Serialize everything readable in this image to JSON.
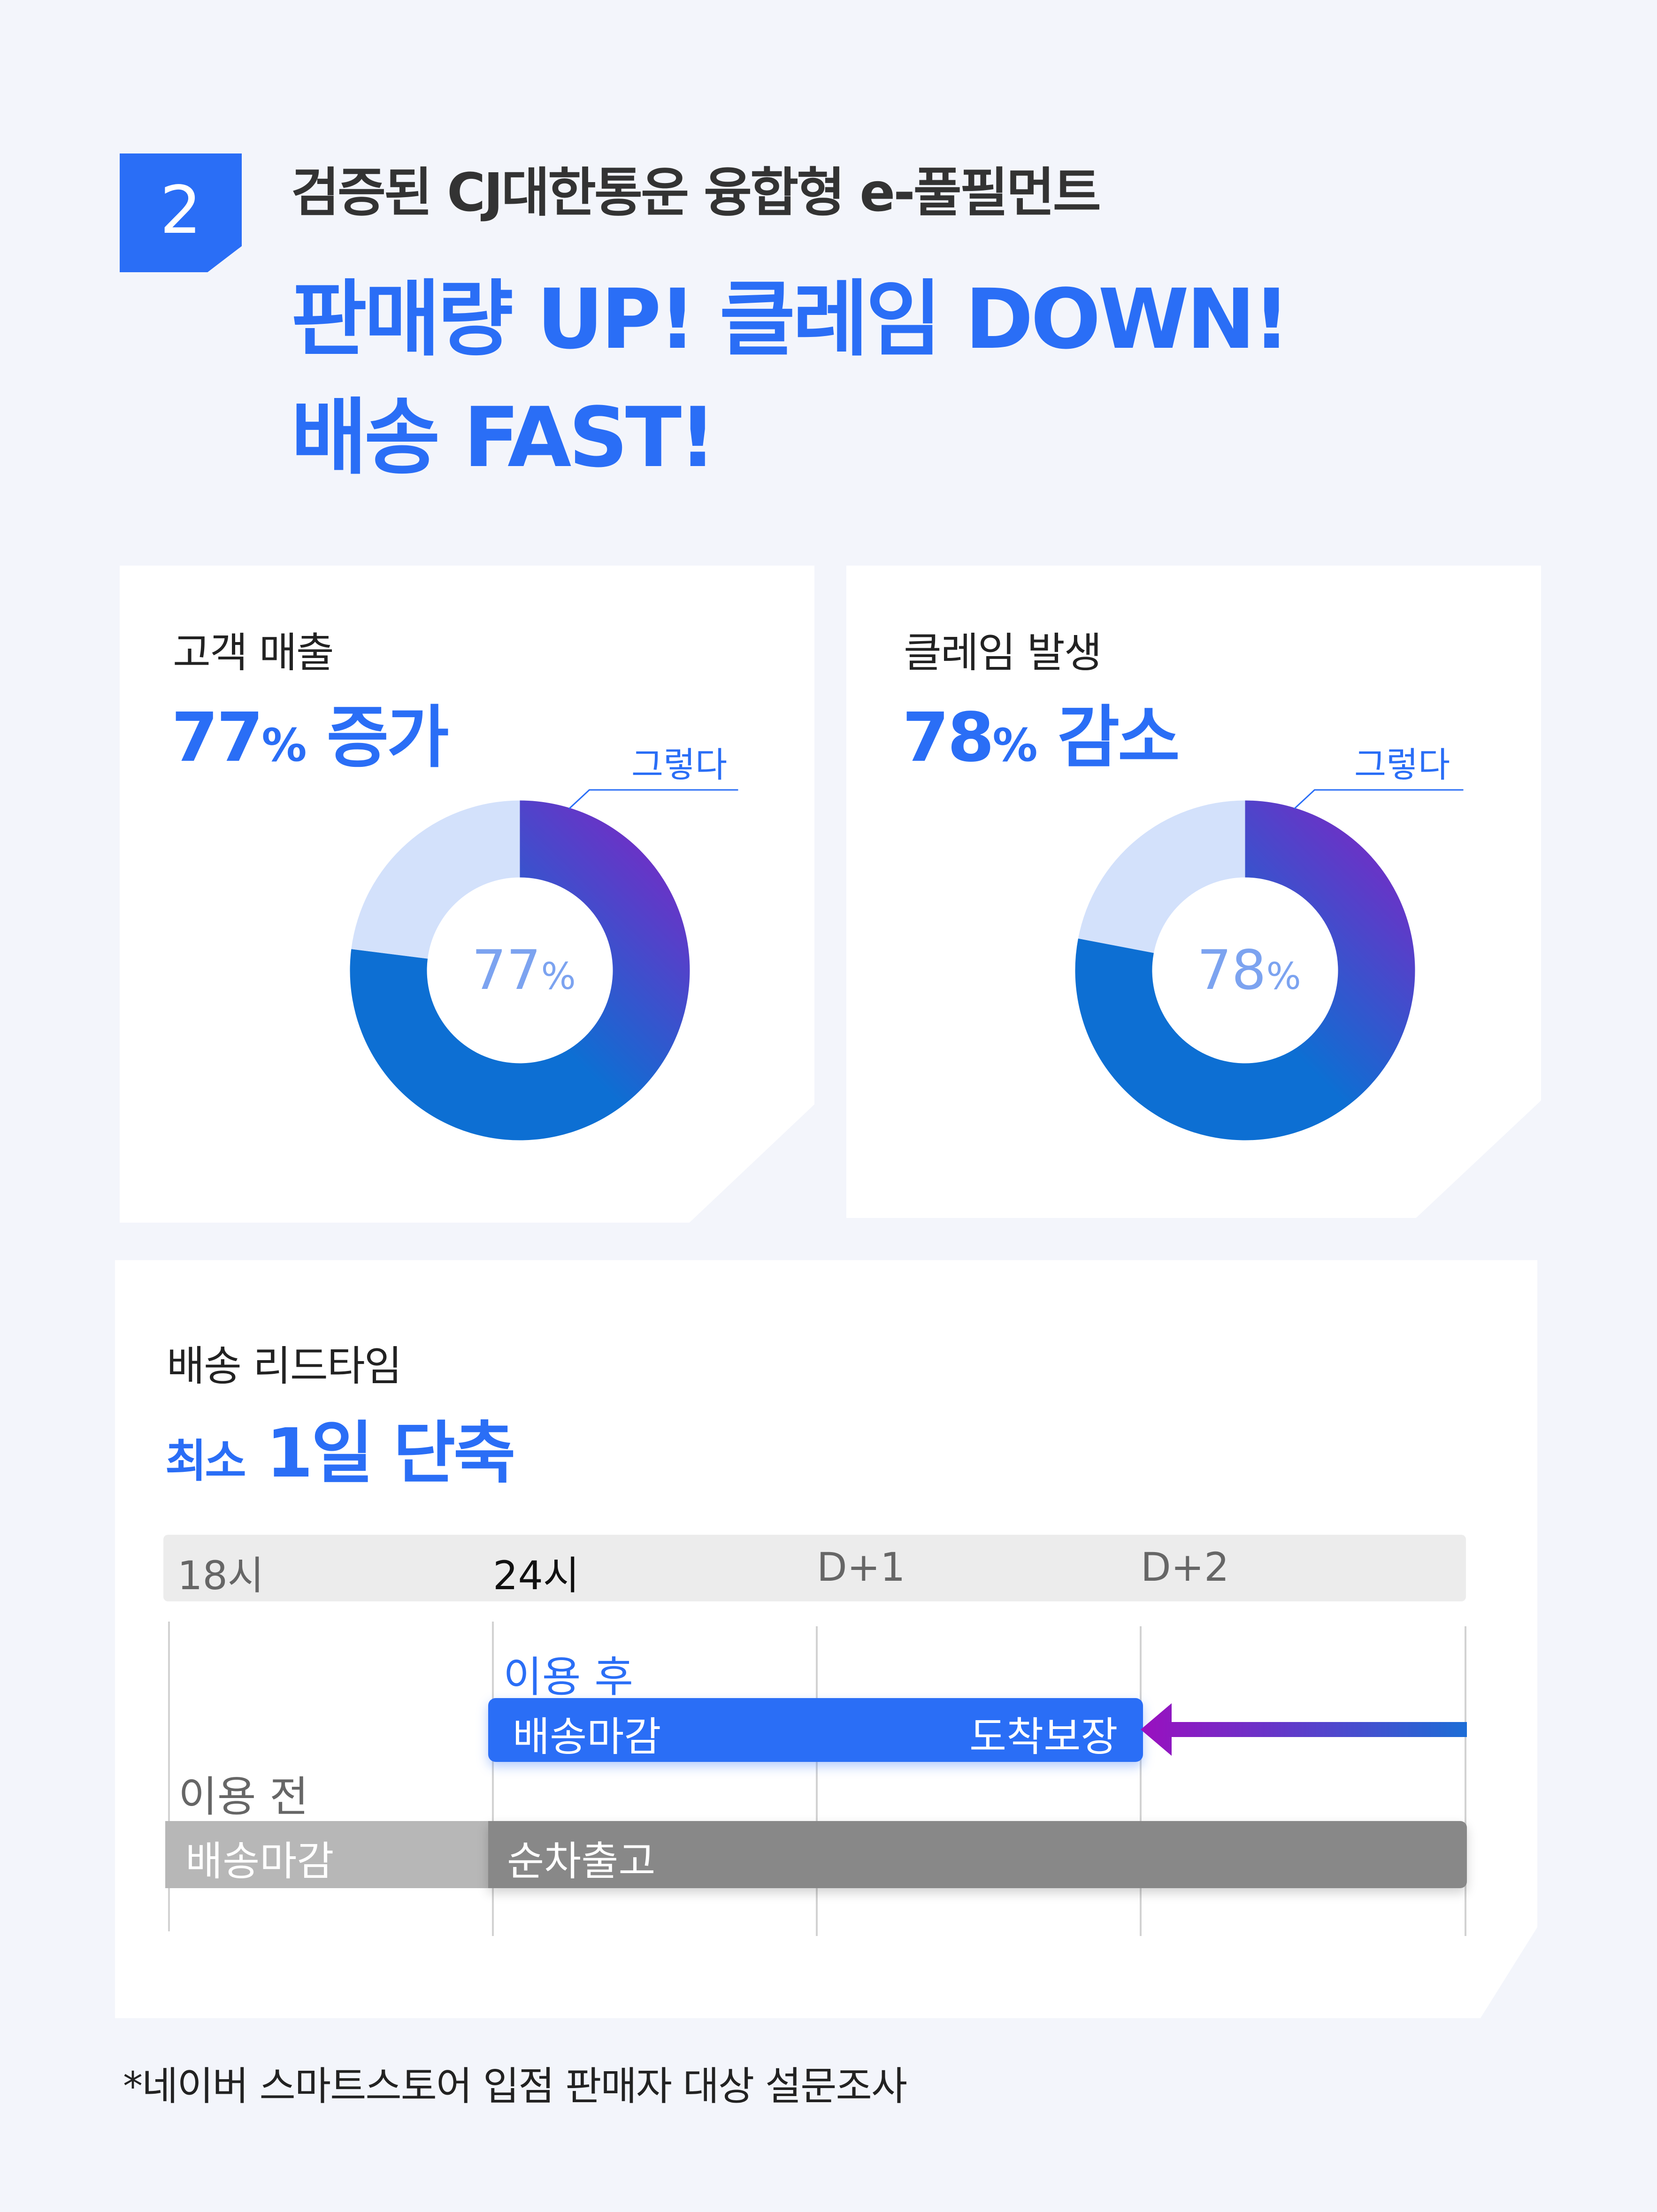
{
  "badge": {
    "number": "2"
  },
  "subtitle": "검증된 CJ대한통운 융합형 e-풀필먼트",
  "headline": {
    "line1": "판매량 UP! 클레임 DOWN!",
    "line2": "배송 FAST!"
  },
  "colors": {
    "brand_blue": "#2a6ef6",
    "donut_light": "#d3e1fb",
    "donut_blue": "#0d6fd3",
    "donut_purple": "#8a1ec2",
    "bar_gray_dark": "#888888",
    "bar_gray_light": "#b7b7b7"
  },
  "cards": [
    {
      "label": "고객 매출",
      "value": "77",
      "unit": "%",
      "desc": "증가",
      "callout": "그렇다",
      "center_value": "77",
      "center_unit": "%"
    },
    {
      "label": "클레임 발생",
      "value": "78",
      "unit": "%",
      "desc": "감소",
      "callout": "그렇다",
      "center_value": "78",
      "center_unit": "%"
    }
  ],
  "chart_data": [
    {
      "type": "pie",
      "title": "고객 매출",
      "slices": [
        {
          "label": "그렇다",
          "value": 77
        },
        {
          "label": "",
          "value": 23
        }
      ]
    },
    {
      "type": "pie",
      "title": "클레임 발생",
      "slices": [
        {
          "label": "그렇다",
          "value": 78
        },
        {
          "label": "",
          "value": 22
        }
      ]
    }
  ],
  "leadtime": {
    "label": "배송 리드타임",
    "value_prefix": "최소",
    "value": "1일 단축",
    "ticks": [
      "18시",
      "24시",
      "D+1",
      "D+2"
    ],
    "after": {
      "label": "이용 후",
      "start": "배송마감",
      "end": "도착보장"
    },
    "before": {
      "label": "이용 전",
      "segment1": "배송마감",
      "segment2": "순차출고"
    }
  },
  "footnote": "*네이버 스마트스토어 입점 판매자 대상 설문조사"
}
